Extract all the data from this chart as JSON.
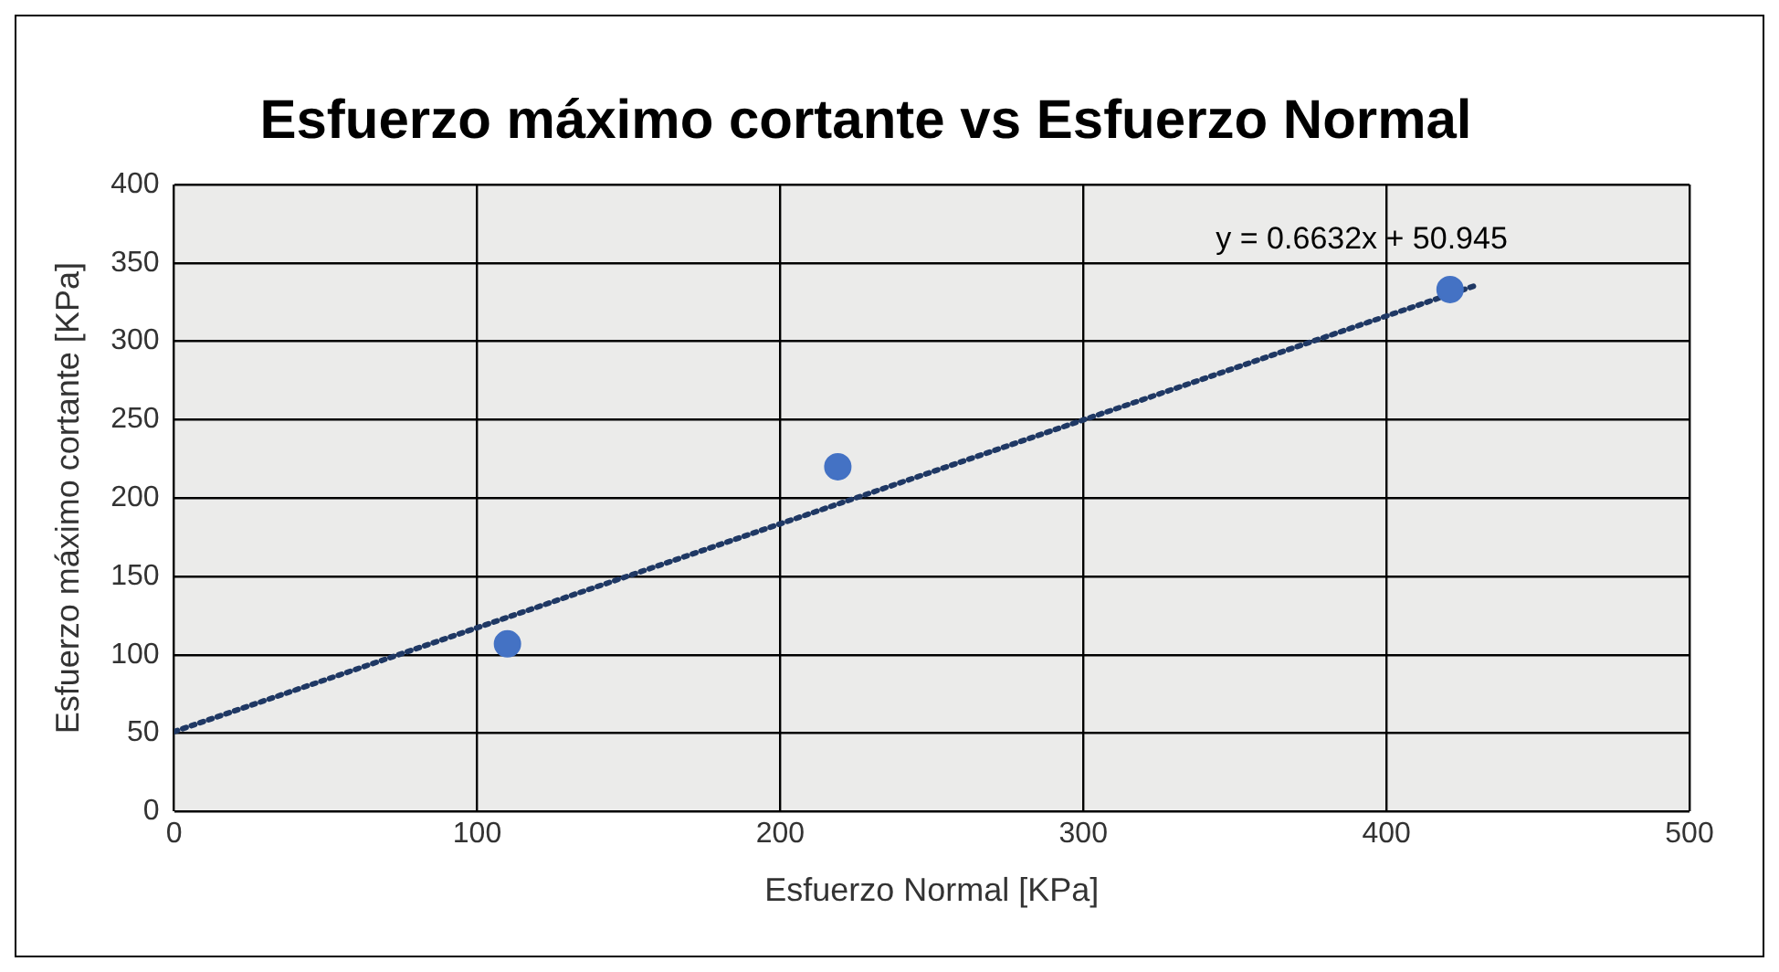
{
  "chart_data": {
    "type": "scatter",
    "title": "Esfuerzo máximo cortante vs Esfuerzo Normal",
    "xlabel": "Esfuerzo Normal [KPa]",
    "ylabel": "Esfuerzo máximo cortante [KPa]",
    "series": [
      {
        "color": "#4472c4",
        "x": [
          110,
          219,
          421
        ],
        "values": [
          107,
          220,
          333
        ],
        "marker": "circle"
      },
      {
        "type": "line",
        "color": "#1f3864",
        "x": [
          0,
          430
        ],
        "values": [
          51,
          336
        ],
        "line_style": "dotted",
        "marker": "none"
      }
    ],
    "xlim": [
      0,
      500
    ],
    "xticks": [
      0,
      100,
      200,
      300,
      400,
      500
    ],
    "ylim": [
      0,
      400
    ],
    "yticks": [
      0,
      50,
      100,
      150,
      200,
      250,
      300,
      350,
      400
    ],
    "grid": true,
    "legend": false,
    "annotations": [
      "y = 0.6632x + 50.945"
    ]
  }
}
